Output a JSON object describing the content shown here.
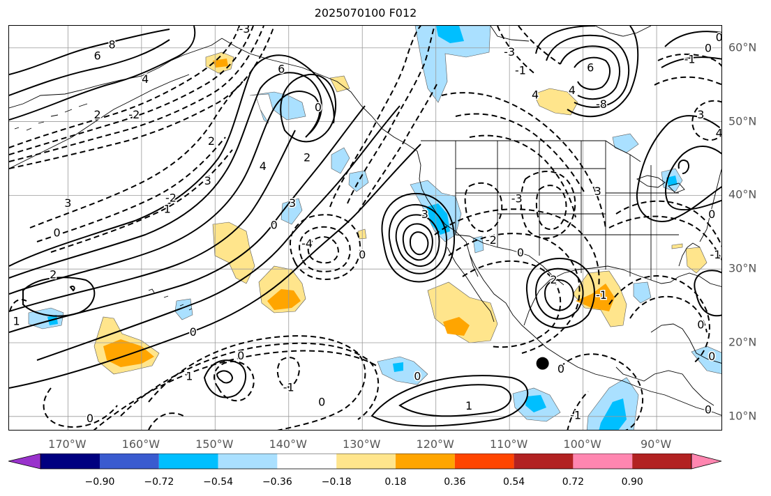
{
  "title": "2025070100 F012",
  "map": {
    "extent": {
      "lon_min": -178,
      "lon_max": -81,
      "lat_min": 8,
      "lat_max": 63
    },
    "lon_ticks": [
      {
        "lon": -170,
        "label": "170°W"
      },
      {
        "lon": -160,
        "label": "160°W"
      },
      {
        "lon": -150,
        "label": "150°W"
      },
      {
        "lon": -140,
        "label": "140°W"
      },
      {
        "lon": -130,
        "label": "130°W"
      },
      {
        "lon": -120,
        "label": "120°W"
      },
      {
        "lon": -110,
        "label": "110°W"
      },
      {
        "lon": -100,
        "label": "100°W"
      },
      {
        "lon": -90,
        "label": "90°W"
      }
    ],
    "lat_ticks": [
      {
        "lat": 60,
        "label": "60°N"
      },
      {
        "lat": 50,
        "label": "50°N"
      },
      {
        "lat": 40,
        "label": "40°N"
      },
      {
        "lat": 30,
        "label": "30°N"
      },
      {
        "lat": 20,
        "label": "20°N"
      },
      {
        "lat": 10,
        "label": "10°N"
      }
    ],
    "marker_point": {
      "lon": -105.5,
      "lat": 17.2,
      "color": "#000000"
    },
    "contour_labels": [
      {
        "lon": -164,
        "lat": 60.5,
        "text": "8"
      },
      {
        "lon": -166,
        "lat": 59,
        "text": "6"
      },
      {
        "lon": -159.5,
        "lat": 55.8,
        "text": "4"
      },
      {
        "lon": -166,
        "lat": 51,
        "text": "2"
      },
      {
        "lon": -161,
        "lat": 51,
        "text": "-2"
      },
      {
        "lon": -146,
        "lat": 62.6,
        "text": "-3"
      },
      {
        "lon": -141,
        "lat": 57.2,
        "text": "6"
      },
      {
        "lon": -150.5,
        "lat": 47.4,
        "text": "2"
      },
      {
        "lon": -151,
        "lat": 42,
        "text": "3"
      },
      {
        "lon": -143.5,
        "lat": 44,
        "text": "4"
      },
      {
        "lon": -136,
        "lat": 52,
        "text": "0"
      },
      {
        "lon": -137.5,
        "lat": 45.2,
        "text": "2"
      },
      {
        "lon": -156,
        "lat": 39.7,
        "text": "-2"
      },
      {
        "lon": -156.5,
        "lat": 38.2,
        "text": "1"
      },
      {
        "lon": -170,
        "lat": 39,
        "text": "3"
      },
      {
        "lon": -171.5,
        "lat": 35,
        "text": "0"
      },
      {
        "lon": -172,
        "lat": 29.3,
        "text": "2"
      },
      {
        "lon": -177,
        "lat": 23,
        "text": "1"
      },
      {
        "lon": -142,
        "lat": 36,
        "text": "0"
      },
      {
        "lon": -139.5,
        "lat": 39,
        "text": "3"
      },
      {
        "lon": -137.5,
        "lat": 33.5,
        "text": "-4"
      },
      {
        "lon": -153,
        "lat": 21.5,
        "text": "0"
      },
      {
        "lon": -146.5,
        "lat": 18.3,
        "text": "0"
      },
      {
        "lon": -153.5,
        "lat": 15.5,
        "text": "1"
      },
      {
        "lon": -140,
        "lat": 14,
        "text": "-1"
      },
      {
        "lon": -135.5,
        "lat": 12,
        "text": "0"
      },
      {
        "lon": -167,
        "lat": 9.8,
        "text": "0"
      },
      {
        "lon": -130,
        "lat": 32,
        "text": "0"
      },
      {
        "lon": -121.5,
        "lat": 37.5,
        "text": "3"
      },
      {
        "lon": -112.5,
        "lat": 34,
        "text": "-2"
      },
      {
        "lon": -109,
        "lat": 39.6,
        "text": "-3"
      },
      {
        "lon": -110,
        "lat": 59.5,
        "text": "-3"
      },
      {
        "lon": -108.5,
        "lat": 57,
        "text": "-1"
      },
      {
        "lon": -106.5,
        "lat": 53.7,
        "text": "4"
      },
      {
        "lon": -101.5,
        "lat": 54.3,
        "text": "4"
      },
      {
        "lon": -99,
        "lat": 57.4,
        "text": "6"
      },
      {
        "lon": -97.5,
        "lat": 52.4,
        "text": "-8"
      },
      {
        "lon": -98,
        "lat": 40.6,
        "text": "3"
      },
      {
        "lon": -104,
        "lat": 28.6,
        "text": "2"
      },
      {
        "lon": -108.5,
        "lat": 32.3,
        "text": "0"
      },
      {
        "lon": -97.5,
        "lat": 26.5,
        "text": "-1"
      },
      {
        "lon": -103,
        "lat": 16.5,
        "text": "0"
      },
      {
        "lon": -122.5,
        "lat": 15.5,
        "text": "0"
      },
      {
        "lon": -115.5,
        "lat": 11.5,
        "text": "1"
      },
      {
        "lon": -101,
        "lat": 10.2,
        "text": "-1"
      },
      {
        "lon": -83,
        "lat": 60,
        "text": "0"
      },
      {
        "lon": -81.5,
        "lat": 61.5,
        "text": "0"
      },
      {
        "lon": -85.5,
        "lat": 58.5,
        "text": "-1"
      },
      {
        "lon": -84,
        "lat": 51,
        "text": "3"
      },
      {
        "lon": -81.5,
        "lat": 48.5,
        "text": "4"
      },
      {
        "lon": -82.5,
        "lat": 37.5,
        "text": "0"
      },
      {
        "lon": -82,
        "lat": 32,
        "text": "-1"
      },
      {
        "lon": -84,
        "lat": 22.5,
        "text": "0"
      },
      {
        "lon": -82.5,
        "lat": 18.2,
        "text": "0"
      },
      {
        "lon": -83,
        "lat": 11,
        "text": "0"
      }
    ]
  },
  "colorbar": {
    "colors": [
      "#9932cc",
      "#000080",
      "#3a5bcf",
      "#00bfff",
      "#aae0ff",
      "#ffffff",
      "#ffe58c",
      "#ffa500",
      "#ff4500",
      "#b22222",
      "#ff86b0"
    ],
    "ticks": [
      "−0.90",
      "−0.72",
      "−0.54",
      "−0.36",
      "−0.18",
      "0.18",
      "0.36",
      "0.54",
      "0.72",
      "0.90"
    ]
  }
}
